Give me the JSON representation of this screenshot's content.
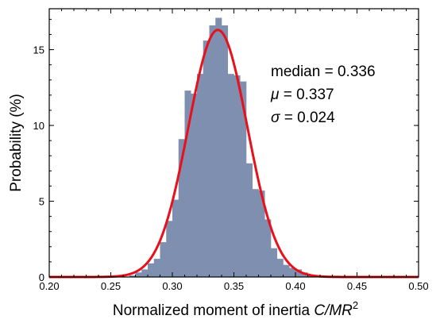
{
  "chart_data": {
    "type": "bar",
    "xlabel_prefix": "Normalized moment of inertia ",
    "xlabel_var": "C/MR",
    "xlabel_sup": "2",
    "ylabel": "Probability (%)",
    "xlim": [
      0.2,
      0.5
    ],
    "ylim": [
      0,
      17.7
    ],
    "x_ticks": [
      0.2,
      0.25,
      0.3,
      0.35,
      0.4,
      0.45,
      0.5
    ],
    "x_tick_labels": [
      "0.20",
      "0.25",
      "0.30",
      "0.35",
      "0.40",
      "0.45",
      "0.50"
    ],
    "y_ticks": [
      0,
      5,
      10,
      15
    ],
    "y_tick_labels": [
      "0",
      "5",
      "10",
      "15"
    ],
    "bin_width": 0.005,
    "bars": [
      {
        "x0": 0.265,
        "value": 0.1
      },
      {
        "x0": 0.27,
        "value": 0.3
      },
      {
        "x0": 0.275,
        "value": 0.5
      },
      {
        "x0": 0.28,
        "value": 0.9
      },
      {
        "x0": 0.285,
        "value": 1.2
      },
      {
        "x0": 0.29,
        "value": 2.3
      },
      {
        "x0": 0.295,
        "value": 3.7
      },
      {
        "x0": 0.3,
        "value": 5.1
      },
      {
        "x0": 0.305,
        "value": 9.1
      },
      {
        "x0": 0.31,
        "value": 12.3
      },
      {
        "x0": 0.315,
        "value": 12.1
      },
      {
        "x0": 0.32,
        "value": 13.4
      },
      {
        "x0": 0.325,
        "value": 15.6
      },
      {
        "x0": 0.33,
        "value": 16.6
      },
      {
        "x0": 0.335,
        "value": 17.1
      },
      {
        "x0": 0.34,
        "value": 16.6
      },
      {
        "x0": 0.345,
        "value": 13.4
      },
      {
        "x0": 0.35,
        "value": 13.3
      },
      {
        "x0": 0.355,
        "value": 12.9
      },
      {
        "x0": 0.36,
        "value": 7.5
      },
      {
        "x0": 0.365,
        "value": 5.8
      },
      {
        "x0": 0.37,
        "value": 5.7
      },
      {
        "x0": 0.375,
        "value": 3.8
      },
      {
        "x0": 0.38,
        "value": 1.9
      },
      {
        "x0": 0.385,
        "value": 1.2
      },
      {
        "x0": 0.39,
        "value": 0.8
      },
      {
        "x0": 0.395,
        "value": 0.6
      },
      {
        "x0": 0.4,
        "value": 0.5
      },
      {
        "x0": 0.405,
        "value": 0.3
      },
      {
        "x0": 0.41,
        "value": 0.1
      },
      {
        "x0": 0.415,
        "value": 0.05
      }
    ],
    "fit_curve": {
      "mean": 0.337,
      "sigma": 0.024,
      "peak": 16.3
    },
    "colors": {
      "bars": "#7f8fb0",
      "curve": "#e8101a",
      "axis": "#000000"
    },
    "annotations": {
      "median": "median = 0.336",
      "mu_symbol": "μ",
      "mu_value": " = 0.337",
      "sigma_symbol": "σ",
      "sigma_value": " = 0.024"
    },
    "grid": false
  }
}
